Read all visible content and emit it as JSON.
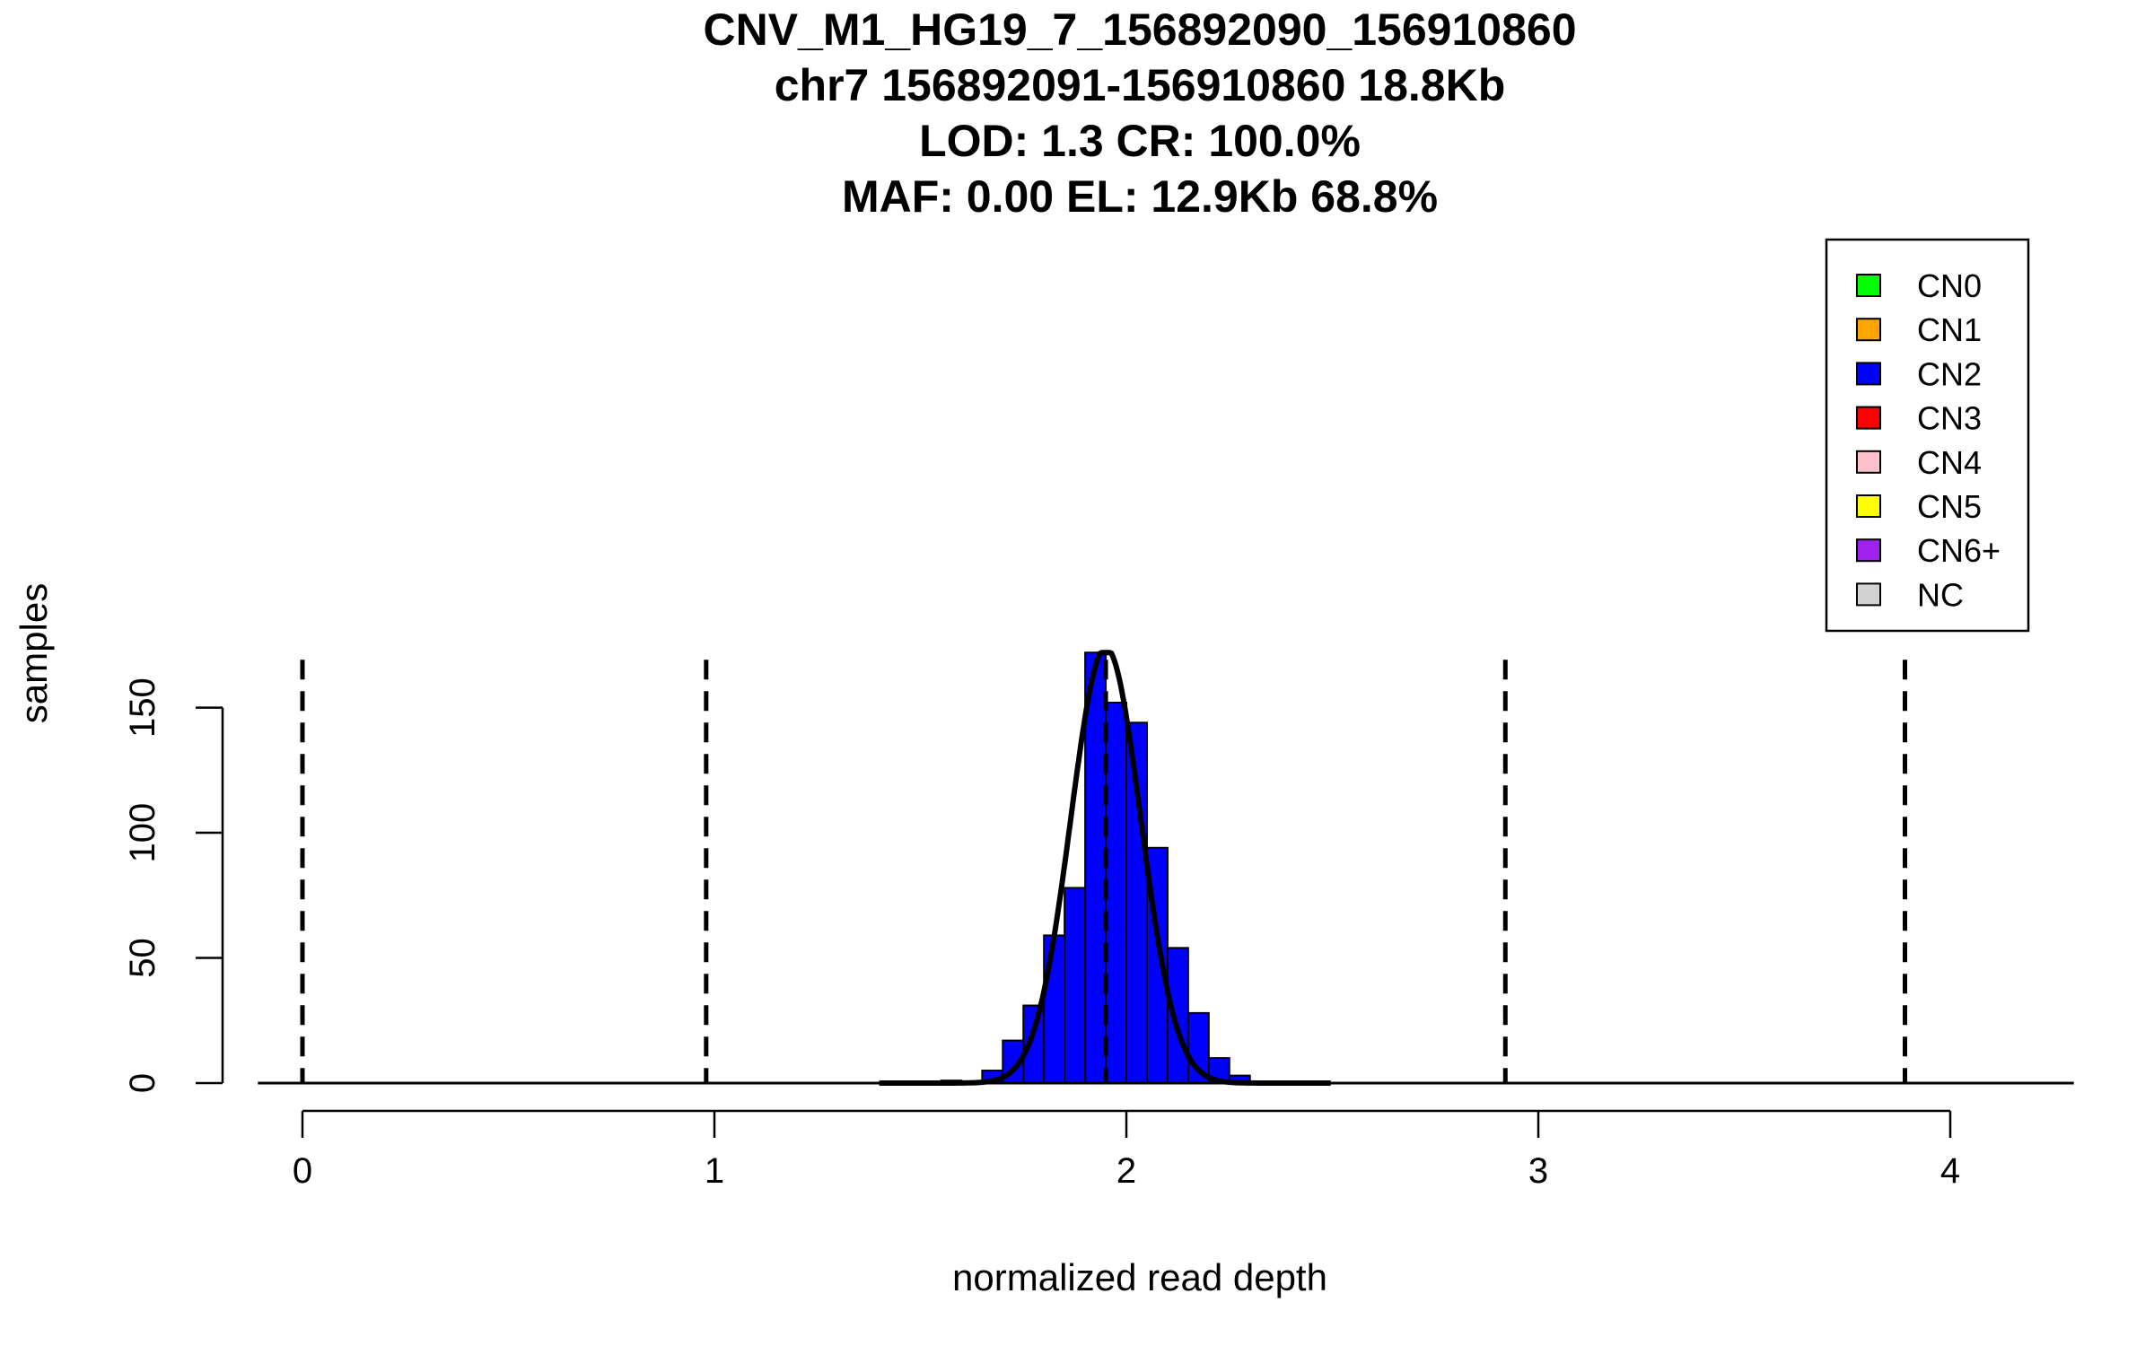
{
  "chart_data": {
    "type": "bar",
    "title_lines": [
      "CNV_M1_HG19_7_156892090_156910860",
      "chr7 156892091-156910860 18.8Kb",
      "LOD: 1.3 CR: 100.0%",
      "MAF: 0.00 EL: 12.9Kb 68.8%"
    ],
    "xlabel": "normalized read depth",
    "ylabel": "samples",
    "xlim": [
      -0.13,
      4.3
    ],
    "ylim": [
      0,
      172
    ],
    "xticks": [
      "0",
      "1",
      "2",
      "3",
      "4"
    ],
    "yticks": [
      "0",
      "50",
      "100",
      "150"
    ],
    "bin_width": 0.05,
    "bins": [
      {
        "x0": 1.55,
        "count": 1
      },
      {
        "x0": 1.6,
        "count": 0
      },
      {
        "x0": 1.65,
        "count": 5
      },
      {
        "x0": 1.7,
        "count": 17
      },
      {
        "x0": 1.75,
        "count": 31
      },
      {
        "x0": 1.8,
        "count": 59
      },
      {
        "x0": 1.85,
        "count": 78
      },
      {
        "x0": 1.9,
        "count": 172
      },
      {
        "x0": 1.95,
        "count": 152
      },
      {
        "x0": 2.0,
        "count": 144
      },
      {
        "x0": 2.05,
        "count": 94
      },
      {
        "x0": 2.1,
        "count": 54
      },
      {
        "x0": 2.15,
        "count": 28
      },
      {
        "x0": 2.2,
        "count": 10
      },
      {
        "x0": 2.25,
        "count": 3
      }
    ],
    "bar_color": "#0000ff",
    "fit_curve": {
      "mean": 1.95,
      "sd": 0.085,
      "peak": 174
    },
    "cn_thresholds": [
      0.0,
      0.98,
      1.95,
      2.92,
      3.89
    ],
    "legend": {
      "position": "top-right",
      "entries": [
        {
          "label": "CN0",
          "color": "#00ff00"
        },
        {
          "label": "CN1",
          "color": "#ffa500"
        },
        {
          "label": "CN2",
          "color": "#0000ff"
        },
        {
          "label": "CN3",
          "color": "#ff0000"
        },
        {
          "label": "CN4",
          "color": "#ffc0cb"
        },
        {
          "label": "CN5",
          "color": "#ffff00"
        },
        {
          "label": "CN6+",
          "color": "#a020f0"
        },
        {
          "label": "NC",
          "color": "#d3d3d3"
        }
      ]
    }
  }
}
